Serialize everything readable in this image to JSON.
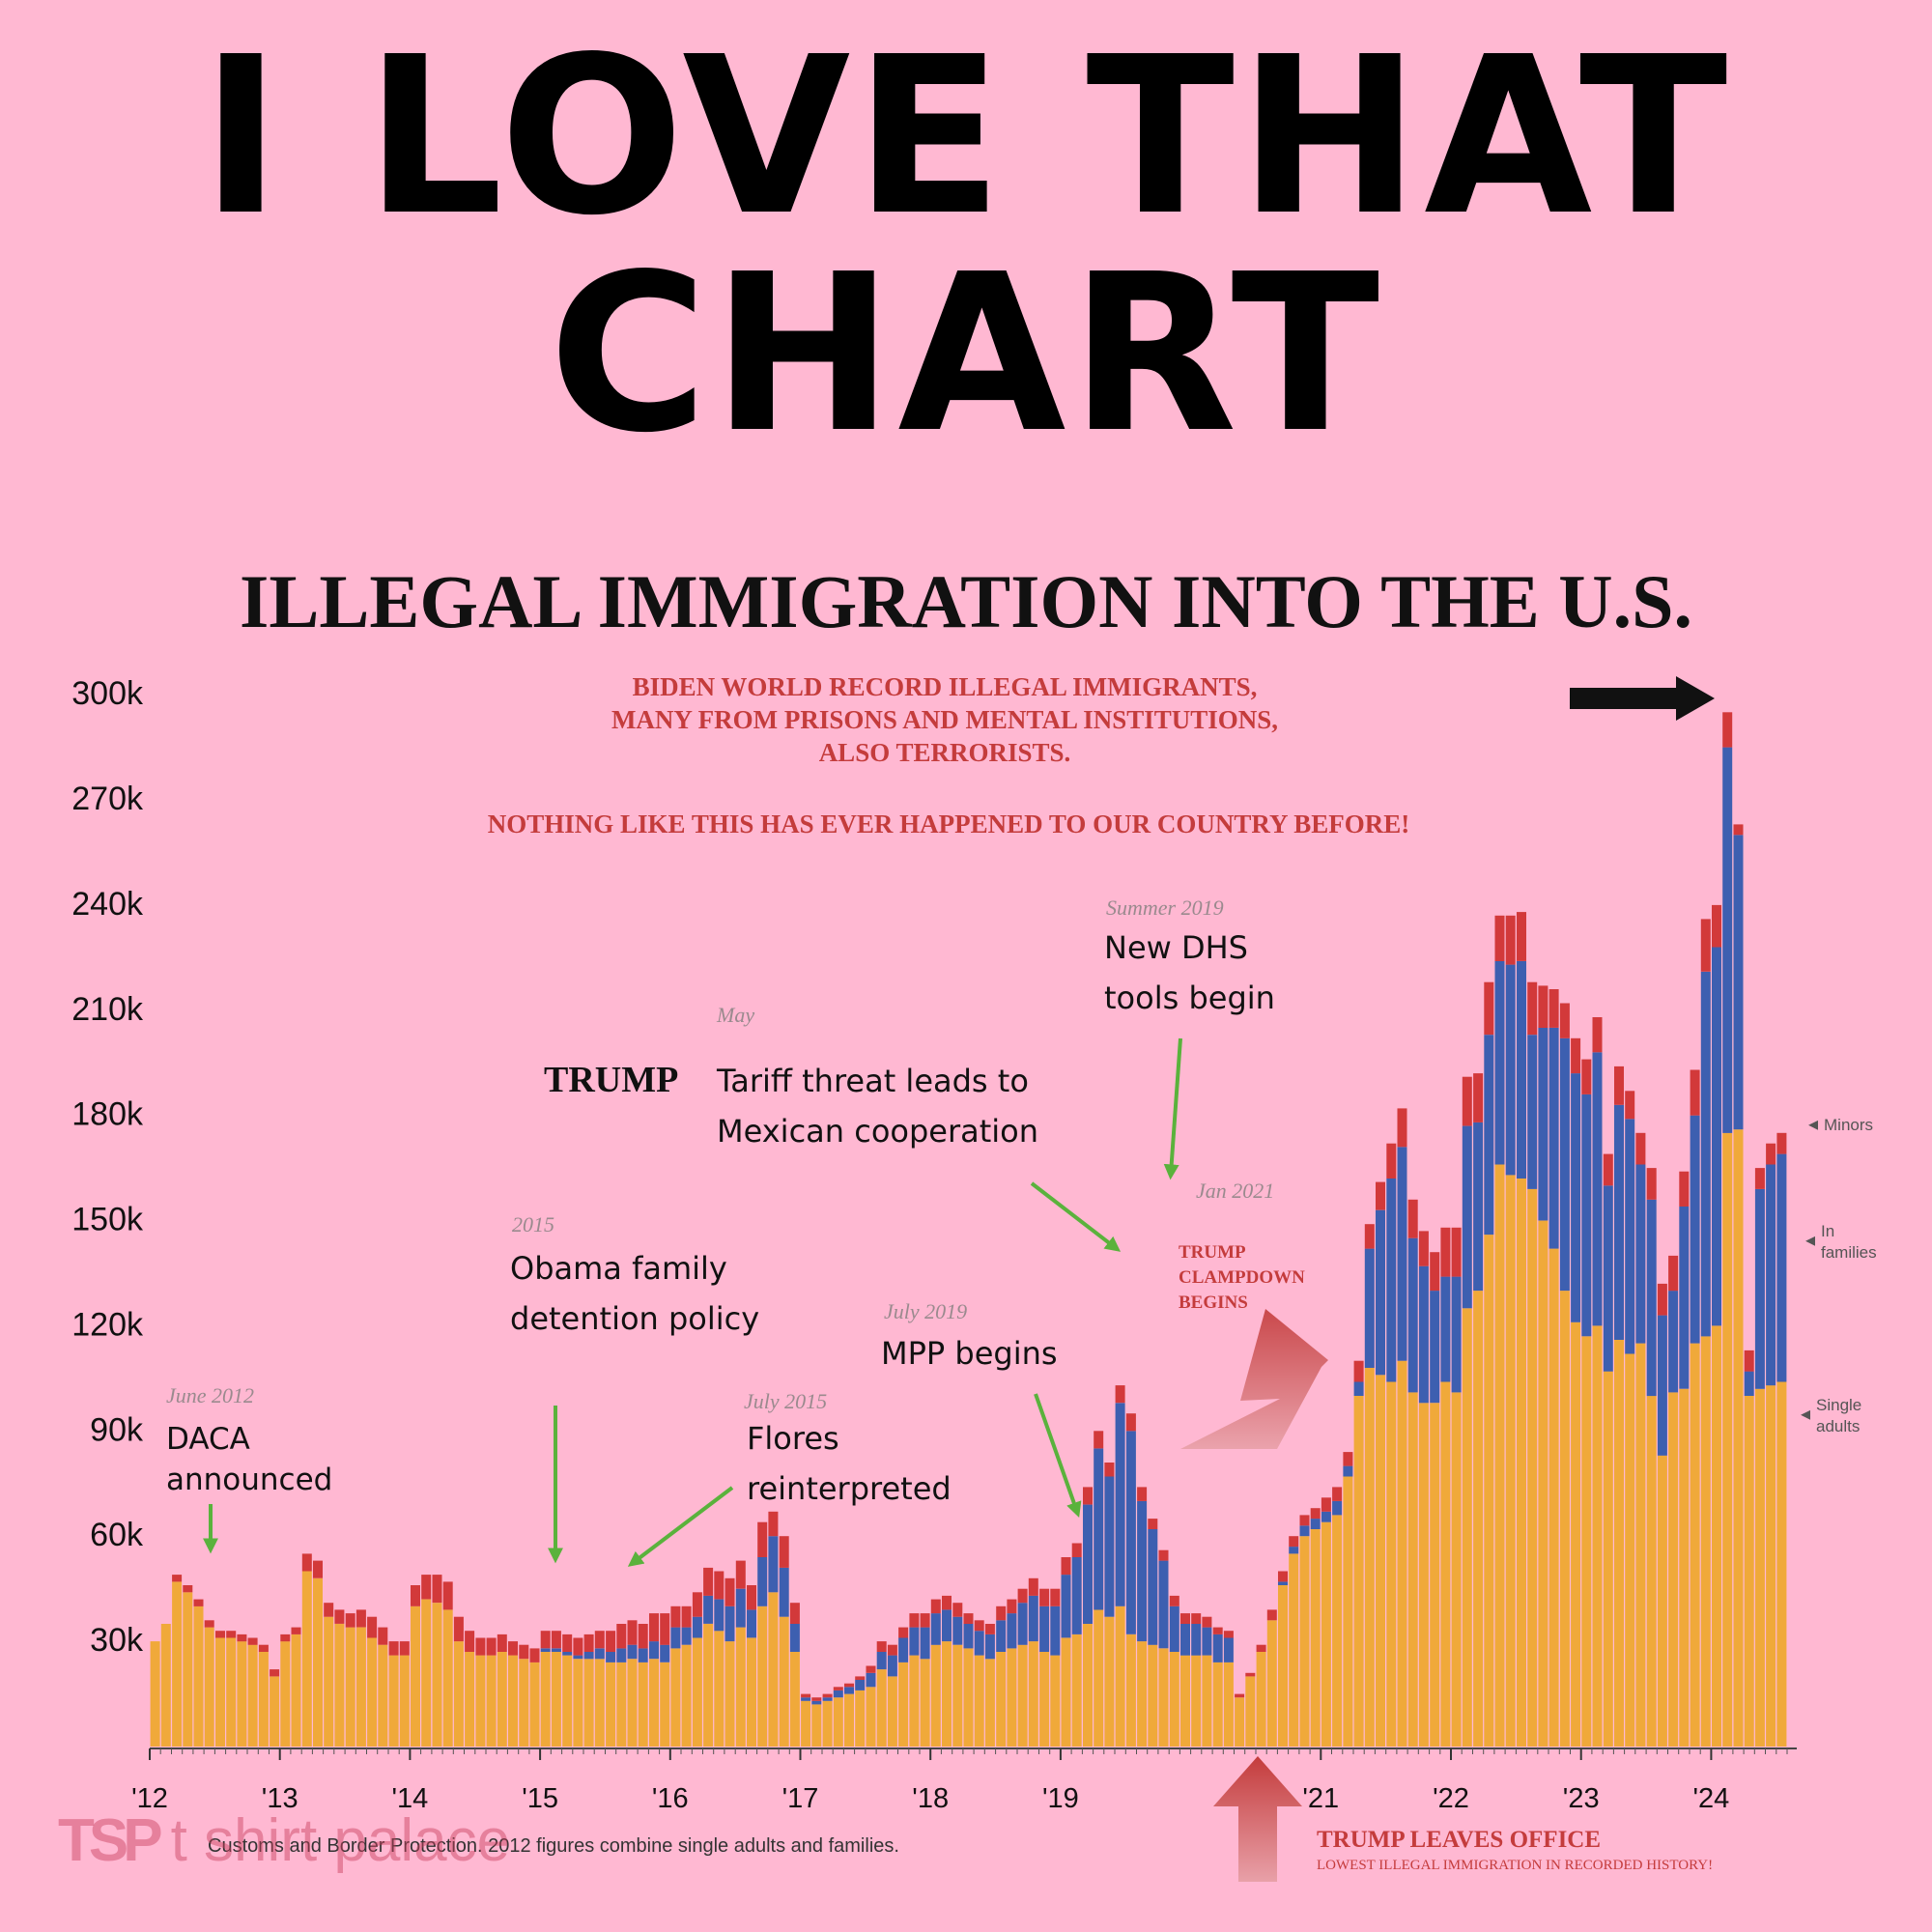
{
  "headline": {
    "line1": "I LOVE THAT",
    "line2": "CHART"
  },
  "subtitle": "ILLEGAL IMMIGRATION INTO THE U.S.",
  "red_note": {
    "lines": [
      "BIDEN WORLD RECORD ILLEGAL IMMIGRANTS,",
      "MANY FROM PRISONS AND MENTAL INSTITUTIONS,",
      "ALSO TERRORISTS."
    ],
    "line2": "NOTHING LIKE THIS HAS EVER HAPPENED TO OUR COUNTRY BEFORE!"
  },
  "credit": "Customs and Border Protection. 2012 figures combine single adults and families.",
  "watermark": {
    "logo": "TSP",
    "text": "t shirt palace"
  },
  "colors": {
    "background": "#ffb8d2",
    "adults": "#f0a93a",
    "families": "#3d5fb0",
    "minors": "#d2393a",
    "callout_green": "#5ab23c",
    "callout_red": "#c43c3c"
  },
  "chart_data": {
    "type": "bar",
    "stacked": true,
    "x_unit": "month",
    "start": "2012-01",
    "xticks": [
      "'12",
      "'13",
      "'14",
      "'15",
      "'16",
      "'17",
      "'18",
      "'19",
      "'21",
      "'22",
      "'23",
      "'24"
    ],
    "xtick_dates": [
      "2012-01",
      "2013-01",
      "2014-01",
      "2015-01",
      "2016-01",
      "2017-01",
      "2018-01",
      "2019-01",
      "2021-01",
      "2022-01",
      "2023-01",
      "2024-01"
    ],
    "yticks": [
      "30k",
      "60k",
      "90k",
      "120k",
      "150k",
      "180k",
      "210k",
      "240k",
      "270k",
      "300k"
    ],
    "ytick_values": [
      30000,
      60000,
      90000,
      120000,
      150000,
      180000,
      210000,
      240000,
      270000,
      300000
    ],
    "ylim": [
      0,
      300000
    ],
    "grid": false,
    "series": [
      {
        "name": "Single adults",
        "color": "#f0a93a",
        "values": [
          30000,
          35000,
          47000,
          44000,
          40000,
          34000,
          31000,
          31000,
          30000,
          29000,
          27000,
          20000,
          30000,
          32000,
          50000,
          48000,
          37000,
          35000,
          34000,
          34000,
          31000,
          29000,
          26000,
          26000,
          40000,
          42000,
          41000,
          39000,
          30000,
          27000,
          26000,
          26000,
          27000,
          26000,
          25000,
          24000,
          27000,
          27000,
          26000,
          25000,
          25000,
          25000,
          24000,
          24000,
          25000,
          24000,
          25000,
          24000,
          28000,
          29000,
          31000,
          35000,
          33000,
          30000,
          34000,
          31000,
          40000,
          44000,
          37000,
          27000,
          13000,
          12000,
          13000,
          14000,
          15000,
          16000,
          17000,
          22000,
          20000,
          24000,
          26000,
          25000,
          29000,
          30000,
          29000,
          28000,
          26000,
          25000,
          27000,
          28000,
          29000,
          30000,
          27000,
          26000,
          31000,
          32000,
          35000,
          39000,
          37000,
          40000,
          32000,
          30000,
          29000,
          28000,
          27000,
          26000,
          26000,
          26000,
          24000,
          24000,
          14000,
          20000,
          27000,
          36000,
          46000,
          55000,
          60000,
          62000,
          64000,
          66000,
          77000,
          100000,
          108000,
          106000,
          104000,
          110000,
          101000,
          98000,
          98000,
          104000,
          101000,
          125000,
          130000,
          146000,
          166000,
          163000,
          162000,
          159000,
          150000,
          142000,
          130000,
          121000,
          117000,
          120000,
          107000,
          116000,
          112000,
          115000,
          100000,
          83000,
          101000,
          102000,
          115000,
          117000,
          120000,
          175000,
          176000,
          100000,
          102000,
          103000,
          104000
        ]
      },
      {
        "name": "In families",
        "color": "#3d5fb0",
        "values": [
          0,
          0,
          0,
          0,
          0,
          0,
          0,
          0,
          0,
          0,
          0,
          0,
          0,
          0,
          0,
          0,
          0,
          0,
          0,
          0,
          0,
          0,
          0,
          0,
          0,
          0,
          0,
          0,
          0,
          0,
          0,
          0,
          0,
          0,
          0,
          0,
          1000,
          1000,
          1000,
          1000,
          2000,
          3000,
          3000,
          4000,
          4000,
          4000,
          5000,
          5000,
          6000,
          5000,
          6000,
          8000,
          9000,
          10000,
          11000,
          8000,
          14000,
          16000,
          14000,
          8000,
          1000,
          1000,
          1000,
          2000,
          2000,
          3000,
          4000,
          5000,
          6000,
          7000,
          8000,
          9000,
          9000,
          9000,
          8000,
          7000,
          7000,
          7000,
          9000,
          10000,
          12000,
          13000,
          13000,
          14000,
          18000,
          22000,
          34000,
          46000,
          40000,
          58000,
          58000,
          40000,
          33000,
          25000,
          13000,
          9000,
          9000,
          8000,
          8000,
          7000,
          0,
          0,
          0,
          0,
          1000,
          2000,
          3000,
          3000,
          3000,
          4000,
          3000,
          4000,
          34000,
          47000,
          58000,
          61000,
          44000,
          39000,
          32000,
          30000,
          33000,
          52000,
          48000,
          57000,
          58000,
          60000,
          62000,
          44000,
          55000,
          63000,
          72000,
          71000,
          69000,
          78000,
          53000,
          67000,
          67000,
          51000,
          56000,
          40000,
          29000,
          52000,
          65000,
          104000,
          108000,
          110000,
          84000,
          7000,
          57000,
          63000,
          65000
        ]
      },
      {
        "name": "Minors",
        "color": "#d2393a",
        "values": [
          0,
          0,
          2000,
          2000,
          2000,
          2000,
          2000,
          2000,
          2000,
          2000,
          2000,
          2000,
          2000,
          2000,
          5000,
          5000,
          4000,
          4000,
          4000,
          5000,
          6000,
          5000,
          4000,
          4000,
          6000,
          7000,
          8000,
          8000,
          7000,
          6000,
          5000,
          5000,
          5000,
          4000,
          4000,
          4000,
          5000,
          5000,
          5000,
          5000,
          5000,
          5000,
          6000,
          7000,
          7000,
          7000,
          8000,
          9000,
          6000,
          6000,
          7000,
          8000,
          8000,
          8000,
          8000,
          7000,
          10000,
          7000,
          9000,
          6000,
          1000,
          1000,
          1000,
          1000,
          1000,
          1000,
          2000,
          3000,
          3000,
          3000,
          4000,
          4000,
          4000,
          4000,
          4000,
          3000,
          3000,
          3000,
          4000,
          4000,
          4000,
          5000,
          5000,
          5000,
          5000,
          4000,
          5000,
          5000,
          4000,
          5000,
          5000,
          4000,
          3000,
          3000,
          3000,
          3000,
          3000,
          3000,
          2000,
          2000,
          1000,
          1000,
          2000,
          3000,
          3000,
          3000,
          3000,
          3000,
          4000,
          4000,
          4000,
          6000,
          7000,
          8000,
          10000,
          11000,
          11000,
          10000,
          11000,
          14000,
          14000,
          14000,
          14000,
          15000,
          13000,
          14000,
          14000,
          15000,
          12000,
          11000,
          10000,
          10000,
          10000,
          10000,
          9000,
          11000,
          8000,
          9000,
          9000,
          9000,
          10000,
          10000,
          13000,
          15000,
          12000,
          10000,
          3000,
          6000,
          6000,
          6000,
          6000
        ]
      }
    ],
    "annotations": [
      {
        "date_small": "June 2012",
        "lines": [
          "DACA",
          "announced"
        ]
      },
      {
        "date_small": "2015",
        "lines": [
          "Obama family",
          "detention policy"
        ]
      },
      {
        "date_small": "July 2015",
        "lines": [
          "Flores",
          "reinterpreted"
        ]
      },
      {
        "date_small": "July 2019",
        "lines": [
          "MPP begins"
        ]
      },
      {
        "date_small": "May",
        "prefix": "TRUMP",
        "lines": [
          "Tariff threat leads to",
          "Mexican cooperation"
        ]
      },
      {
        "date_small": "Summer 2019",
        "lines": [
          "New DHS",
          "tools begin"
        ]
      },
      {
        "date_small": "Jan 2021",
        "lines": [
          "TRUMP",
          "CLAMPDOWN",
          "BEGINS"
        ]
      },
      {
        "lines": [
          "TRUMP LEAVES OFFICE",
          "LOWEST ILLEGAL IMMIGRATION IN RECORDED HISTORY!"
        ]
      }
    ],
    "legend": [
      {
        "label": "Minors"
      },
      {
        "label": "In families"
      },
      {
        "label": "Single adults"
      }
    ]
  }
}
